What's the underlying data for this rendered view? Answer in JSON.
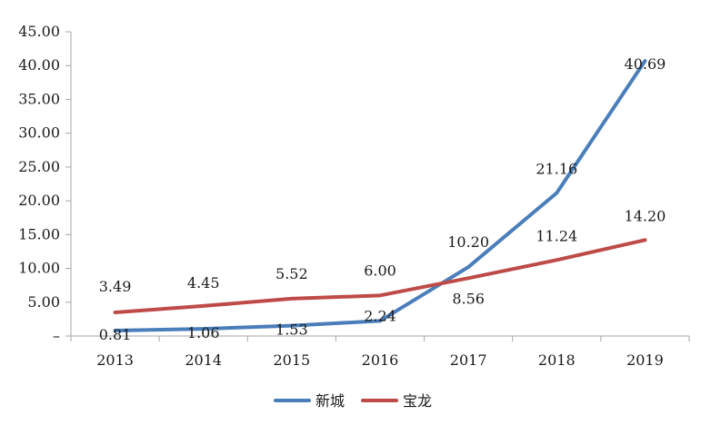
{
  "chart_data": {
    "type": "line",
    "categories": [
      "2013",
      "2014",
      "2015",
      "2016",
      "2017",
      "2018",
      "2019"
    ],
    "ylim": [
      0,
      45
    ],
    "y_ticks": [
      "–",
      "5.00",
      "10.00",
      "15.00",
      "20.00",
      "25.00",
      "30.00",
      "35.00",
      "40.00",
      "45.00"
    ],
    "grid": false,
    "legend_position": "bottom",
    "series": [
      {
        "name": "新城",
        "color": "#4a7ebb",
        "values": [
          0.81,
          1.06,
          1.53,
          2.24,
          10.2,
          21.16,
          40.69
        ],
        "labels": [
          "0.81",
          "1.06",
          "1.53",
          "2.24",
          "10.20",
          "21.16",
          "40.69"
        ]
      },
      {
        "name": "宝龙",
        "color": "#be4b48",
        "values": [
          3.49,
          4.45,
          5.52,
          6.0,
          8.56,
          11.24,
          14.2
        ],
        "labels": [
          "3.49",
          "4.45",
          "5.52",
          "6.00",
          "8.56",
          "11.24",
          "14.20"
        ]
      }
    ]
  }
}
